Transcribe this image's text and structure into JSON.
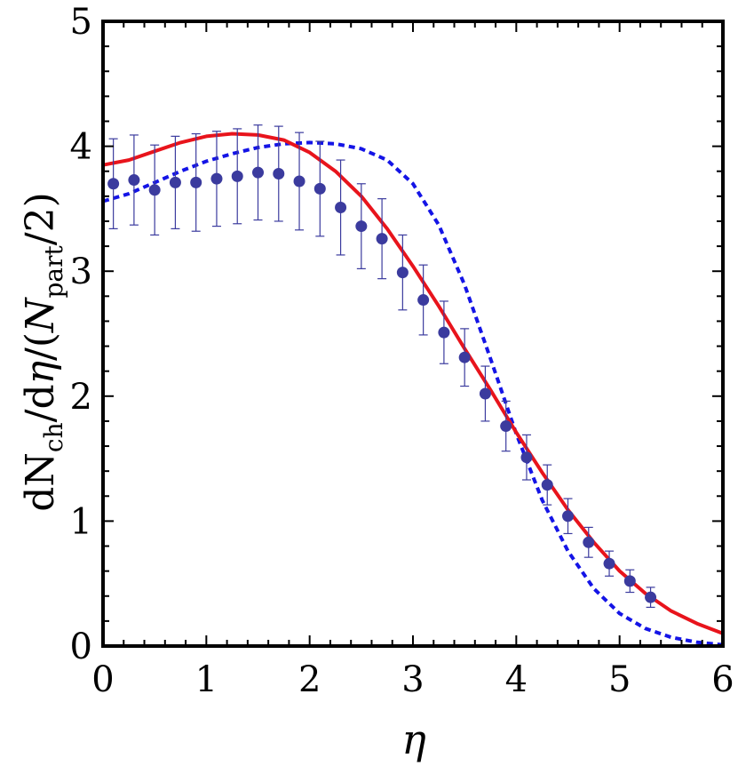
{
  "chart_data": {
    "type": "scatter",
    "title": "",
    "xlabel": "η",
    "ylabel": {
      "main1": "dN",
      "sub1": "ch",
      "main2": "/d",
      "eta": "η",
      "main3": "/(",
      "italicN": "N",
      "sub2": "part",
      "main4": "/2)"
    },
    "xlim": [
      0,
      6
    ],
    "ylim": [
      0,
      5
    ],
    "xticks": [
      0,
      1,
      2,
      3,
      4,
      5,
      6
    ],
    "yticks": [
      0,
      1,
      2,
      3,
      4,
      5
    ],
    "xtick_labels": [
      "0",
      "1",
      "2",
      "3",
      "4",
      "5",
      "6"
    ],
    "ytick_labels": [
      "0",
      "1",
      "2",
      "3",
      "4",
      "5"
    ],
    "grid": false,
    "legend": "none",
    "colors": {
      "points": "#3b3b9e",
      "solid": "#e8141c",
      "dashed": "#1414e6",
      "frame": "#000000"
    },
    "series": [
      {
        "kind": "points_with_errors",
        "x": [
          0.1,
          0.3,
          0.5,
          0.7,
          0.9,
          1.1,
          1.3,
          1.5,
          1.7,
          1.9,
          2.1,
          2.3,
          2.5,
          2.7,
          2.9,
          3.1,
          3.3,
          3.5,
          3.7,
          3.9,
          4.1,
          4.3,
          4.5,
          4.7,
          4.9,
          5.1,
          5.3
        ],
        "y": [
          3.7,
          3.73,
          3.65,
          3.71,
          3.71,
          3.74,
          3.76,
          3.79,
          3.78,
          3.72,
          3.66,
          3.51,
          3.36,
          3.26,
          2.99,
          2.77,
          2.51,
          2.31,
          2.02,
          1.76,
          1.51,
          1.29,
          1.04,
          0.83,
          0.66,
          0.52,
          0.39
        ],
        "yerr": [
          0.36,
          0.36,
          0.36,
          0.37,
          0.39,
          0.38,
          0.38,
          0.38,
          0.38,
          0.39,
          0.38,
          0.38,
          0.34,
          0.32,
          0.3,
          0.28,
          0.25,
          0.23,
          0.22,
          0.2,
          0.18,
          0.16,
          0.14,
          0.12,
          0.1,
          0.09,
          0.08
        ]
      },
      {
        "kind": "solid_line",
        "x": [
          0,
          0.25,
          0.5,
          0.75,
          1.0,
          1.25,
          1.5,
          1.75,
          2.0,
          2.25,
          2.5,
          2.75,
          3.0,
          3.25,
          3.5,
          3.75,
          4.0,
          4.25,
          4.5,
          4.75,
          5.0,
          5.25,
          5.5,
          5.75,
          6.0
        ],
        "y": [
          3.85,
          3.89,
          3.96,
          4.03,
          4.08,
          4.1,
          4.09,
          4.05,
          3.95,
          3.8,
          3.6,
          3.34,
          3.04,
          2.72,
          2.38,
          2.05,
          1.71,
          1.39,
          1.09,
          0.83,
          0.6,
          0.42,
          0.28,
          0.18,
          0.1
        ]
      },
      {
        "kind": "dashed_line",
        "x": [
          0,
          0.25,
          0.5,
          0.75,
          1.0,
          1.25,
          1.5,
          1.75,
          2.0,
          2.25,
          2.5,
          2.75,
          3.0,
          3.25,
          3.5,
          3.75,
          4.0,
          4.25,
          4.5,
          4.75,
          5.0,
          5.25,
          5.5,
          5.75,
          6.0
        ],
        "y": [
          3.56,
          3.62,
          3.71,
          3.8,
          3.88,
          3.94,
          3.99,
          4.02,
          4.03,
          4.02,
          3.98,
          3.89,
          3.7,
          3.37,
          2.89,
          2.3,
          1.7,
          1.17,
          0.76,
          0.46,
          0.26,
          0.14,
          0.07,
          0.03,
          0.01
        ]
      }
    ]
  }
}
